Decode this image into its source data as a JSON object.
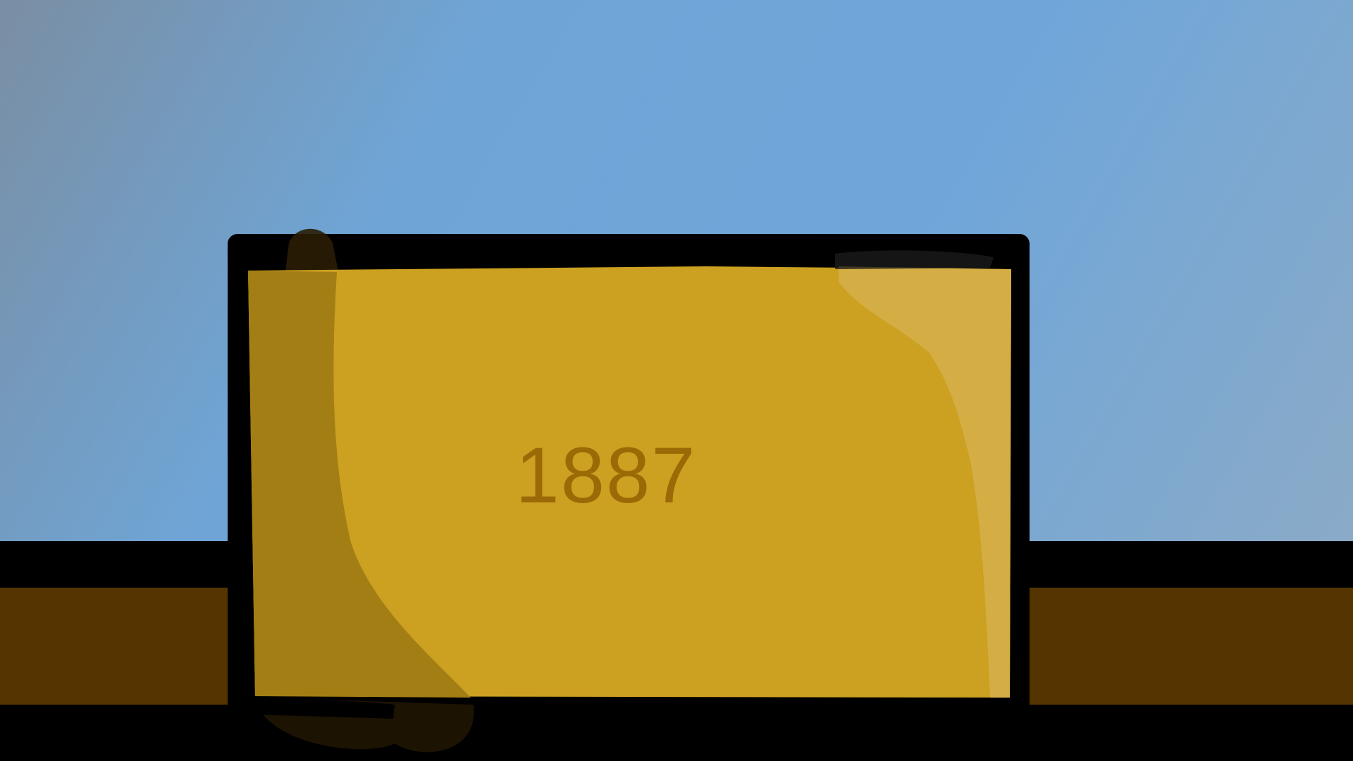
{
  "scene": {
    "year": "1887",
    "colors": {
      "sky": "#6ea6da",
      "ground": "#553400",
      "outline": "#000000",
      "sign_face": "#cca020",
      "sign_shadow": "#a37e14",
      "sign_highlight": "#d4ae44",
      "year_text": "#9a6a06"
    }
  }
}
